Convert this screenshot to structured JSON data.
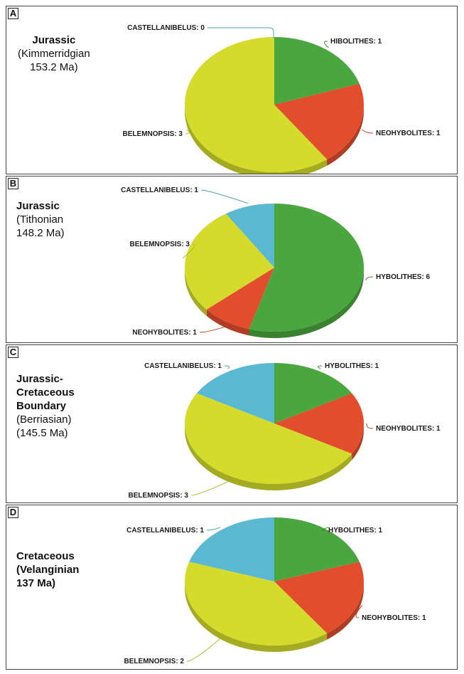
{
  "panels": [
    {
      "letter": "A",
      "era_main": "Jurassic",
      "era_sub": "(Kimmerridgian\n153.2 Ma)",
      "era_sub_bold": false,
      "chart_data": {
        "type": "pie",
        "slices": [
          {
            "name": "HIBOLITHES",
            "value": 1,
            "label": "HIBOLITHES: 1",
            "color": "#4aa63e"
          },
          {
            "name": "NEOHYBOLITES",
            "value": 1,
            "label": "NEOHYBOLITES: 1",
            "color": "#e24e2c"
          },
          {
            "name": "BELEMNOPSIS",
            "value": 3,
            "label": "BELEMNOPSIS: 3",
            "color": "#d4db2a"
          },
          {
            "name": "CASTELLANIBELUS",
            "value": 0,
            "label": "CASTELLANIBELUS: 0",
            "color": "#5ab8d2"
          }
        ]
      }
    },
    {
      "letter": "B",
      "era_main": "Jurassic",
      "era_sub": "(Tithonian\n148.2 Ma)",
      "era_sub_bold": false,
      "chart_data": {
        "type": "pie",
        "slices": [
          {
            "name": "HYBOLITHES",
            "value": 6,
            "label": "HYBOLITHES: 6",
            "color": "#4aa63e"
          },
          {
            "name": "NEOHYBOLITES",
            "value": 1,
            "label": "NEOHYBOLITES: 1",
            "color": "#e24e2c"
          },
          {
            "name": "BELEMNOPSIS",
            "value": 3,
            "label": "BELEMNOPSIS: 3",
            "color": "#d4db2a"
          },
          {
            "name": "CASTELLANIBELUS",
            "value": 1,
            "label": "CASTELLANIBELUS: 1",
            "color": "#5ab8d2"
          }
        ]
      }
    },
    {
      "letter": "C",
      "era_main": "Jurassic-\nCretaceous\nBoundary",
      "era_sub": "(Berriasian)\n(145.5 Ma)",
      "era_sub_bold": false,
      "chart_data": {
        "type": "pie",
        "slices": [
          {
            "name": "HYBOLITHES",
            "value": 1,
            "label": "HYBOLITHES: 1",
            "color": "#4aa63e"
          },
          {
            "name": "NEOHYBOLITES",
            "value": 1,
            "label": "NEOHYBOLITES: 1",
            "color": "#e24e2c"
          },
          {
            "name": "BELEMNOPSIS",
            "value": 3,
            "label": "BELEMNOPSIS: 3",
            "color": "#d4db2a"
          },
          {
            "name": "CASTELLANIBELUS",
            "value": 1,
            "label": "CASTELLANIBELUS: 1",
            "color": "#5ab8d2"
          }
        ]
      }
    },
    {
      "letter": "D",
      "era_main": "Cretaceous",
      "era_sub": "(Velanginian\n137 Ma)",
      "era_sub_bold": true,
      "chart_data": {
        "type": "pie",
        "slices": [
          {
            "name": "HYBOLITHES",
            "value": 1,
            "label": "HYBOLITHES: 1",
            "color": "#4aa63e"
          },
          {
            "name": "NEOHYBOLITES",
            "value": 1,
            "label": "NEOHYBOLITES: 1",
            "color": "#e24e2c"
          },
          {
            "name": "BELEMNOPSIS",
            "value": 2,
            "label": "BELEMNOPSIS: 2",
            "color": "#d4db2a"
          },
          {
            "name": "CASTELLANIBELUS",
            "value": 1,
            "label": "CASTELLANIBELUS: 1",
            "color": "#5ab8d2"
          }
        ]
      }
    }
  ]
}
